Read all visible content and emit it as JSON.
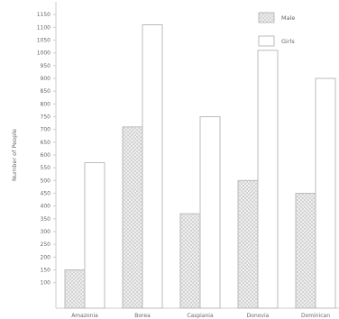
{
  "chart_data": {
    "type": "bar",
    "title": "",
    "xlabel": "",
    "ylabel": "Number of People",
    "categories": [
      "Amazonia",
      "Borea",
      "Caspiania",
      "Donovia",
      "Dominican"
    ],
    "series": [
      {
        "name": "Male",
        "values": [
          150,
          710,
          370,
          500,
          450
        ],
        "pattern": "crosshatch"
      },
      {
        "name": "Girls",
        "values": [
          570,
          1110,
          750,
          1010,
          900
        ],
        "pattern": "plain"
      }
    ],
    "ylim": [
      0,
      1200
    ],
    "yticks": [
      100,
      150,
      200,
      250,
      300,
      350,
      400,
      450,
      500,
      550,
      600,
      650,
      700,
      750,
      800,
      850,
      900,
      950,
      1000,
      1050,
      1100,
      1150
    ],
    "grid": false,
    "legend": "top-right",
    "colors": {
      "axis": "#cccccc",
      "bar_stroke": "#bbbbbb",
      "bar_fill": "#ffffff",
      "hatch": "#c8c8c8",
      "text": "#666666"
    }
  }
}
